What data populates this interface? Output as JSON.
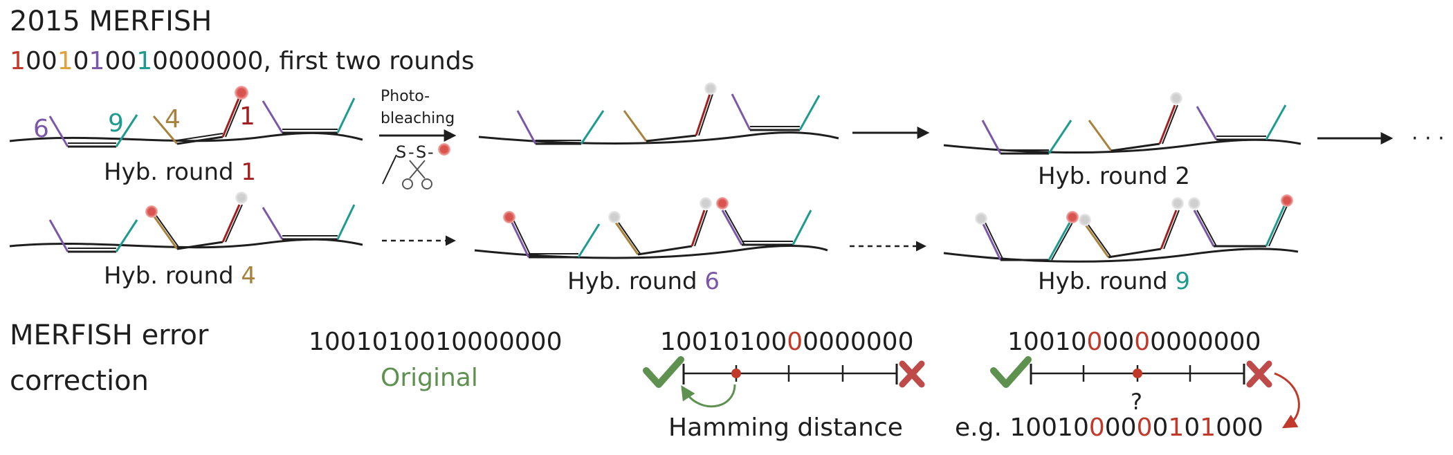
{
  "title": "2015 MERFISH",
  "subtitle": {
    "bits": [
      "1",
      "0",
      "0",
      "1",
      "0",
      "1",
      "0",
      "0",
      "1",
      "0",
      "0",
      "0",
      "0",
      "0",
      "0",
      "0"
    ],
    "suffix": ", first two rounds"
  },
  "probe_labels": [
    "6",
    "9",
    "4",
    "1"
  ],
  "photobleach": {
    "line1": "Photo-",
    "line2": "bleaching",
    "s1": "S",
    "s2": "S",
    "dash1": "-",
    "dash2": "-"
  },
  "ellipsis": "· · ·",
  "rounds": {
    "prefix": "Hyb. round ",
    "r1": "1",
    "r2": "2",
    "r4": "4",
    "r6": "6",
    "r9": "9"
  },
  "error_section": {
    "title_line1": "MERFISH error",
    "title_line2": "correction",
    "original_code": "1001010010000000",
    "original_label": "Original",
    "code_one_flip": {
      "pre": "10010100",
      "flip": "0",
      "post": "0000000"
    },
    "code_two_flip": {
      "p1": "10010",
      "f1": "0",
      "p2": "00",
      "f2": "0",
      "p3": "0000000"
    },
    "question_mark": "?",
    "hamming_label": "Hamming distance",
    "example": {
      "prefix": "e.g. ",
      "p1": "10010",
      "f1": "0",
      "p2": "00",
      "f2": "0",
      "p3": "0",
      "f3": "1",
      "p4": "0",
      "f4": "1",
      "p5": "000"
    }
  },
  "colors": {
    "text": "#1e1e1e",
    "red": "#c0392b",
    "dark_red": "#a31f1f",
    "orange": "#e0a23a",
    "purple": "#7a57a8",
    "teal": "#1e9a8e",
    "brown": "#a8813c",
    "green": "#5e9150",
    "cross_red": "#bf4a4a",
    "gray_dot": "#d0d0d0"
  }
}
